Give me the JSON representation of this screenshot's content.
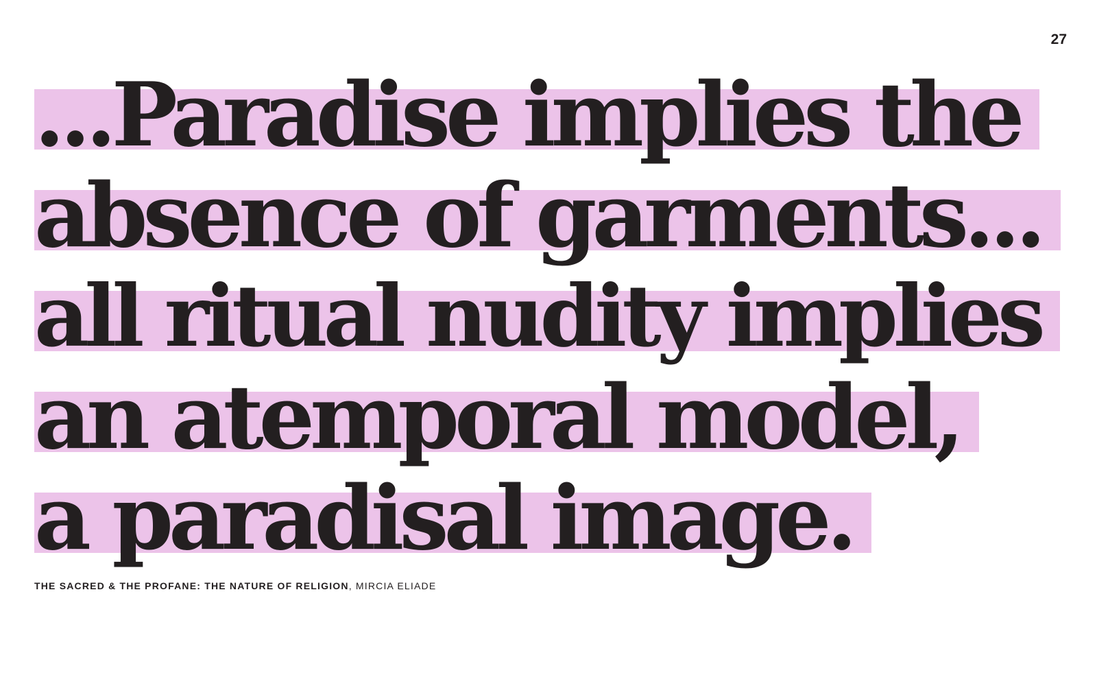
{
  "page": {
    "number": "27"
  },
  "quote": {
    "lines": [
      "...Paradise implies the",
      "absence of garments...",
      "all ritual nudity implies",
      "an atemporal model,",
      "a paradisal image."
    ],
    "highlight_color": "#ecc3e9",
    "text_color": "#231f20"
  },
  "citation": {
    "work": "THE SACRED & THE PROFANE: THE NATURE OF RELIGION",
    "separator": ", ",
    "author": "MIRCIA ELIADE"
  }
}
